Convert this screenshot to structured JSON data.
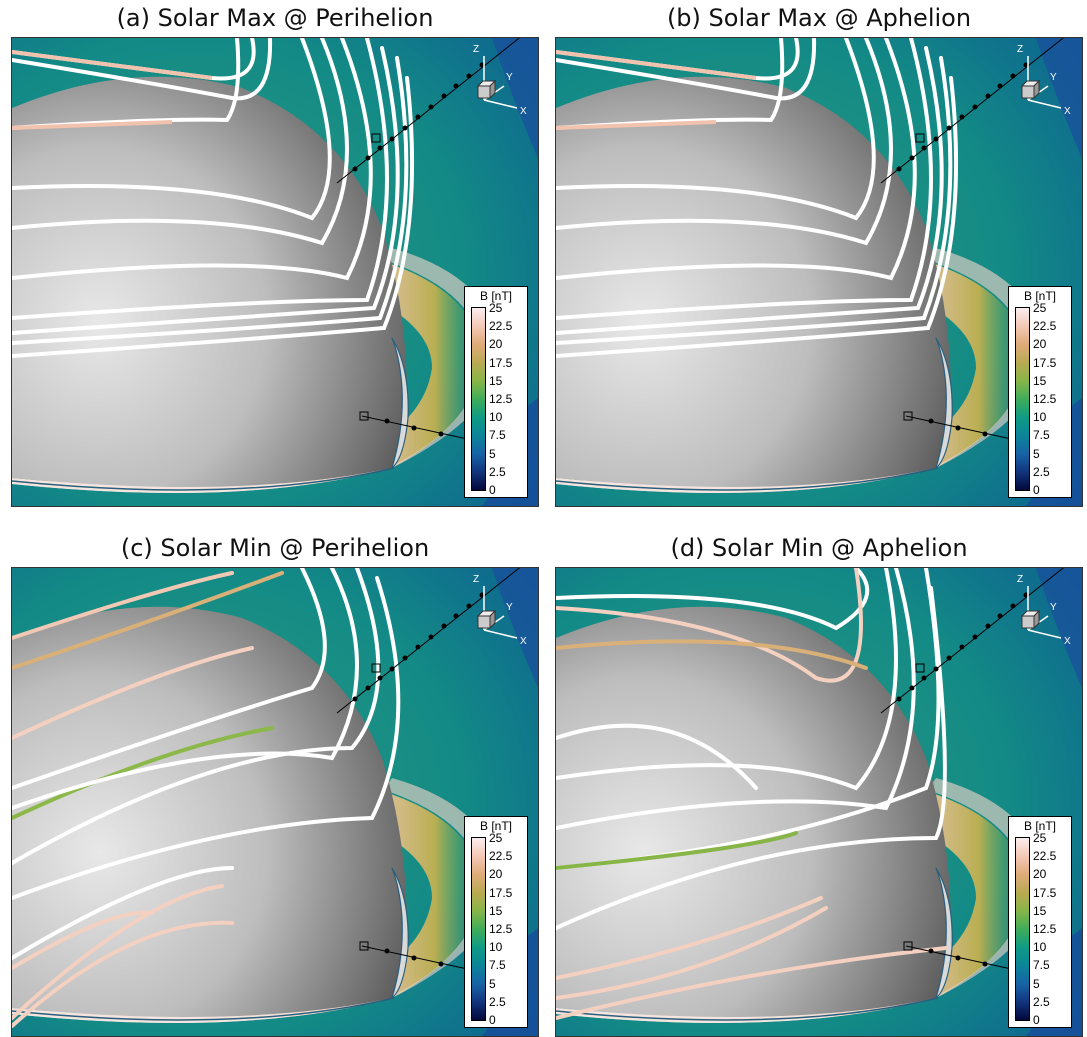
{
  "panels": [
    {
      "title": "(a) Solar Max @ Perihelion",
      "variant": "max"
    },
    {
      "title": "(b) Solar Max @ Aphelion",
      "variant": "max"
    },
    {
      "title": "(c) Solar Min @ Perihelion",
      "variant": "min"
    },
    {
      "title": "(d) Solar Min @ Aphelion",
      "variant": "min2"
    }
  ],
  "colorbar": {
    "title": "B [nT]",
    "ticks": [
      "25",
      "22.5",
      "20",
      "17.5",
      "15",
      "12.5",
      "10",
      "7.5",
      "5",
      "2.5",
      "0"
    ]
  },
  "axes": {
    "x": "X",
    "y": "Y",
    "z": "Z"
  }
}
